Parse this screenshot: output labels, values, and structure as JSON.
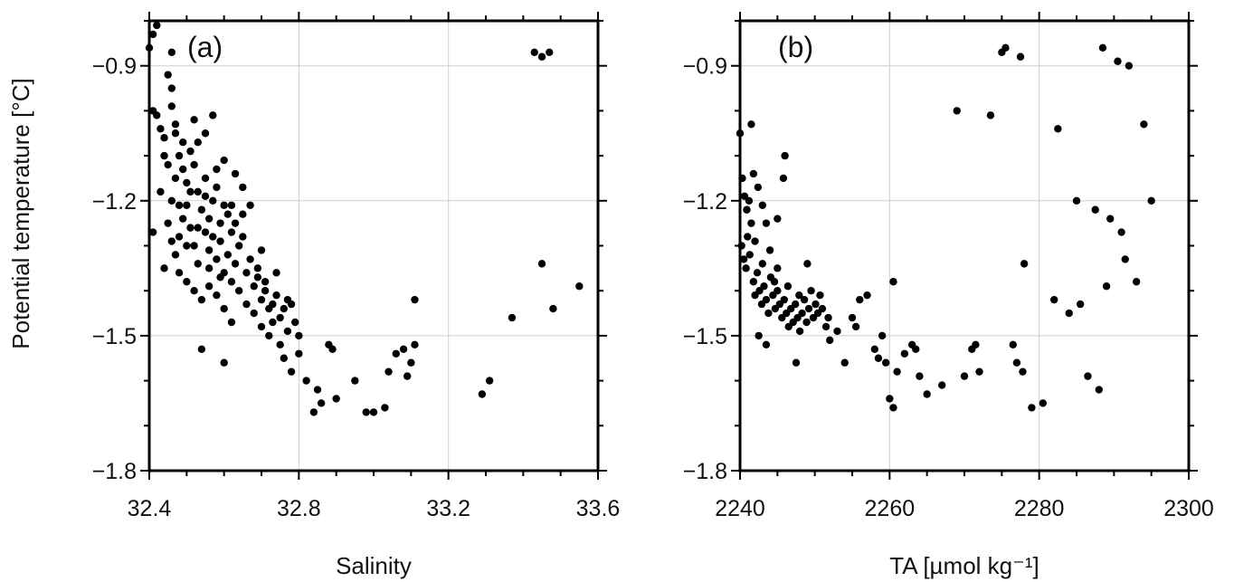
{
  "figure": {
    "ylabel": "Potential temperature [°C]"
  },
  "chart_data": [
    {
      "type": "scatter",
      "panel_label": "(a)",
      "title": "",
      "xlabel": "Salinity",
      "ylabel": "Potential temperature [°C]",
      "xlim": [
        32.4,
        33.6
      ],
      "ylim": [
        -1.8,
        -0.8
      ],
      "xticks": [
        "32.4",
        "32.8",
        "33.2",
        "33.6"
      ],
      "yticks": [
        "−1.8",
        "−1.5",
        "−1.2",
        "−0.9"
      ],
      "grid": true,
      "marker_color": "#000000",
      "series": [
        {
          "points": [
            [
              32.4,
              -0.86
            ],
            [
              32.41,
              -0.83
            ],
            [
              32.42,
              -0.81
            ],
            [
              32.43,
              -0.79
            ],
            [
              32.41,
              -1.0
            ],
            [
              32.42,
              -1.01
            ],
            [
              32.43,
              -1.04
            ],
            [
              32.44,
              -1.06
            ],
            [
              32.45,
              -0.92
            ],
            [
              32.46,
              -0.95
            ],
            [
              32.46,
              -0.99
            ],
            [
              32.47,
              -1.03
            ],
            [
              32.44,
              -1.1
            ],
            [
              32.45,
              -1.12
            ],
            [
              32.47,
              -1.15
            ],
            [
              32.43,
              -1.18
            ],
            [
              32.46,
              -1.2
            ],
            [
              32.48,
              -1.1
            ],
            [
              32.49,
              -1.13
            ],
            [
              32.5,
              -1.16
            ],
            [
              32.51,
              -1.09
            ],
            [
              32.52,
              -1.12
            ],
            [
              32.53,
              -1.18
            ],
            [
              32.45,
              -1.25
            ],
            [
              32.46,
              -1.29
            ],
            [
              32.47,
              -1.32
            ],
            [
              32.48,
              -1.28
            ],
            [
              32.49,
              -1.24
            ],
            [
              32.5,
              -1.21
            ],
            [
              32.51,
              -1.26
            ],
            [
              32.52,
              -1.3
            ],
            [
              32.53,
              -1.34
            ],
            [
              32.54,
              -1.22
            ],
            [
              32.55,
              -1.19
            ],
            [
              32.55,
              -1.27
            ],
            [
              32.56,
              -1.24
            ],
            [
              32.56,
              -1.31
            ],
            [
              32.57,
              -1.2
            ],
            [
              32.57,
              -1.28
            ],
            [
              32.58,
              -1.33
            ],
            [
              32.58,
              -1.17
            ],
            [
              32.59,
              -1.25
            ],
            [
              32.59,
              -1.29
            ],
            [
              32.6,
              -1.21
            ],
            [
              32.6,
              -1.36
            ],
            [
              32.61,
              -1.23
            ],
            [
              32.61,
              -1.32
            ],
            [
              32.62,
              -1.27
            ],
            [
              32.62,
              -1.38
            ],
            [
              32.63,
              -1.25
            ],
            [
              32.63,
              -1.34
            ],
            [
              32.64,
              -1.3
            ],
            [
              32.64,
              -1.4
            ],
            [
              32.65,
              -1.28
            ],
            [
              32.66,
              -1.36
            ],
            [
              32.66,
              -1.43
            ],
            [
              32.67,
              -1.33
            ],
            [
              32.68,
              -1.39
            ],
            [
              32.68,
              -1.45
            ],
            [
              32.69,
              -1.37
            ],
            [
              32.7,
              -1.42
            ],
            [
              32.7,
              -1.48
            ],
            [
              32.71,
              -1.4
            ],
            [
              32.72,
              -1.44
            ],
            [
              32.72,
              -1.5
            ],
            [
              32.73,
              -1.43
            ],
            [
              32.73,
              -1.47
            ],
            [
              32.74,
              -1.41
            ],
            [
              32.75,
              -1.46
            ],
            [
              32.75,
              -1.52
            ],
            [
              32.76,
              -1.44
            ],
            [
              32.77,
              -1.49
            ],
            [
              32.78,
              -1.43
            ],
            [
              32.79,
              -1.47
            ],
            [
              32.8,
              -1.5
            ],
            [
              32.48,
              -1.36
            ],
            [
              32.5,
              -1.38
            ],
            [
              32.52,
              -1.4
            ],
            [
              32.54,
              -1.42
            ],
            [
              32.56,
              -1.39
            ],
            [
              32.58,
              -1.41
            ],
            [
              32.6,
              -1.44
            ],
            [
              32.62,
              -1.47
            ],
            [
              32.44,
              -1.35
            ],
            [
              32.47,
              -1.05
            ],
            [
              32.49,
              -1.07
            ],
            [
              32.52,
              -1.02
            ],
            [
              32.55,
              -1.05
            ],
            [
              32.57,
              -1.01
            ],
            [
              32.6,
              -1.11
            ],
            [
              32.63,
              -1.14
            ],
            [
              32.65,
              -1.17
            ],
            [
              32.67,
              -1.21
            ],
            [
              32.7,
              -1.31
            ],
            [
              32.46,
              -0.87
            ],
            [
              32.41,
              -1.27
            ],
            [
              32.54,
              -1.53
            ],
            [
              32.6,
              -1.56
            ],
            [
              32.76,
              -1.55
            ],
            [
              32.78,
              -1.58
            ],
            [
              32.8,
              -1.54
            ],
            [
              32.82,
              -1.6
            ],
            [
              32.84,
              -1.67
            ],
            [
              32.85,
              -1.62
            ],
            [
              32.86,
              -1.65
            ],
            [
              32.88,
              -1.52
            ],
            [
              32.89,
              -1.53
            ],
            [
              32.9,
              -1.64
            ],
            [
              32.95,
              -1.6
            ],
            [
              32.98,
              -1.67
            ],
            [
              33.0,
              -1.67
            ],
            [
              33.03,
              -1.66
            ],
            [
              33.04,
              -1.58
            ],
            [
              33.06,
              -1.54
            ],
            [
              33.08,
              -1.53
            ],
            [
              33.09,
              -1.59
            ],
            [
              33.1,
              -1.56
            ],
            [
              33.11,
              -1.52
            ],
            [
              33.11,
              -1.42
            ],
            [
              33.29,
              -1.63
            ],
            [
              33.31,
              -1.6
            ],
            [
              33.37,
              -1.46
            ],
            [
              33.43,
              -0.87
            ],
            [
              33.45,
              -0.88
            ],
            [
              33.47,
              -0.87
            ],
            [
              33.45,
              -1.34
            ],
            [
              33.48,
              -1.44
            ],
            [
              33.55,
              -1.39
            ],
            [
              32.5,
              -1.3
            ],
            [
              32.53,
              -1.26
            ],
            [
              32.56,
              -1.35
            ],
            [
              32.59,
              -1.37
            ],
            [
              32.62,
              -1.21
            ],
            [
              32.65,
              -1.23
            ],
            [
              32.69,
              -1.35
            ],
            [
              32.71,
              -1.38
            ],
            [
              32.74,
              -1.36
            ],
            [
              32.77,
              -1.42
            ],
            [
              32.55,
              -1.15
            ],
            [
              32.58,
              -1.13
            ],
            [
              32.53,
              -1.07
            ],
            [
              32.48,
              -1.21
            ],
            [
              32.51,
              -1.18
            ]
          ]
        }
      ]
    },
    {
      "type": "scatter",
      "panel_label": "(b)",
      "title": "",
      "xlabel": "TA [µmol kg⁻¹]",
      "ylabel": "",
      "xlim": [
        2240,
        2300
      ],
      "ylim": [
        -1.8,
        -0.8
      ],
      "xticks": [
        "2240",
        "2260",
        "2280",
        "2300"
      ],
      "yticks": [
        "−1.8",
        "−1.5",
        "−1.2",
        "−0.9"
      ],
      "grid": true,
      "marker_color": "#000000",
      "series": [
        {
          "points": [
            [
              2240.0,
              -1.05
            ],
            [
              2240.3,
              -1.15
            ],
            [
              2240.6,
              -1.19
            ],
            [
              2240.9,
              -1.22
            ],
            [
              2241.2,
              -1.2
            ],
            [
              2241.5,
              -1.25
            ],
            [
              2240.2,
              -1.3
            ],
            [
              2240.5,
              -1.33
            ],
            [
              2240.8,
              -1.35
            ],
            [
              2241.0,
              -1.28
            ],
            [
              2241.3,
              -1.32
            ],
            [
              2241.8,
              -1.38
            ],
            [
              2242.0,
              -1.41
            ],
            [
              2242.3,
              -1.36
            ],
            [
              2242.6,
              -1.4
            ],
            [
              2242.9,
              -1.43
            ],
            [
              2243.2,
              -1.39
            ],
            [
              2243.5,
              -1.42
            ],
            [
              2243.8,
              -1.45
            ],
            [
              2244.1,
              -1.37
            ],
            [
              2244.4,
              -1.41
            ],
            [
              2244.7,
              -1.44
            ],
            [
              2245.0,
              -1.4
            ],
            [
              2245.3,
              -1.43
            ],
            [
              2245.6,
              -1.46
            ],
            [
              2245.9,
              -1.42
            ],
            [
              2246.2,
              -1.45
            ],
            [
              2246.5,
              -1.48
            ],
            [
              2246.8,
              -1.44
            ],
            [
              2247.1,
              -1.47
            ],
            [
              2247.4,
              -1.43
            ],
            [
              2247.7,
              -1.46
            ],
            [
              2248.0,
              -1.49
            ],
            [
              2248.3,
              -1.45
            ],
            [
              2248.6,
              -1.42
            ],
            [
              2248.9,
              -1.47
            ],
            [
              2249.2,
              -1.44
            ],
            [
              2249.5,
              -1.4
            ],
            [
              2249.8,
              -1.46
            ],
            [
              2250.1,
              -1.43
            ],
            [
              2250.4,
              -1.45
            ],
            [
              2250.7,
              -1.41
            ],
            [
              2251.0,
              -1.44
            ],
            [
              2242.0,
              -1.29
            ],
            [
              2243.0,
              -1.34
            ],
            [
              2244.0,
              -1.31
            ],
            [
              2245.0,
              -1.35
            ],
            [
              2243.5,
              -1.25
            ],
            [
              2241.5,
              -1.03
            ],
            [
              2245.8,
              -1.15
            ],
            [
              2246.0,
              -1.1
            ],
            [
              2243.0,
              -1.21
            ],
            [
              2245.0,
              -1.24
            ],
            [
              2242.5,
              -1.5
            ],
            [
              2243.5,
              -1.52
            ],
            [
              2247.5,
              -1.56
            ],
            [
              2249.0,
              -1.34
            ],
            [
              2251.5,
              -1.48
            ],
            [
              2252.0,
              -1.51
            ],
            [
              2253.0,
              -1.49
            ],
            [
              2254.0,
              -1.56
            ],
            [
              2255.0,
              -1.46
            ],
            [
              2255.5,
              -1.48
            ],
            [
              2256.0,
              -1.42
            ],
            [
              2257.0,
              -1.41
            ],
            [
              2258.0,
              -1.53
            ],
            [
              2258.5,
              -1.55
            ],
            [
              2259.0,
              -1.5
            ],
            [
              2259.5,
              -1.56
            ],
            [
              2260.0,
              -1.64
            ],
            [
              2260.5,
              -1.66
            ],
            [
              2261.0,
              -1.58
            ],
            [
              2262.0,
              -1.54
            ],
            [
              2263.0,
              -1.52
            ],
            [
              2264.0,
              -1.59
            ],
            [
              2265.0,
              -1.63
            ],
            [
              2267.0,
              -1.61
            ],
            [
              2269.0,
              -1.0
            ],
            [
              2270.0,
              -1.59
            ],
            [
              2271.0,
              -1.53
            ],
            [
              2272.0,
              -1.58
            ],
            [
              2273.5,
              -1.01
            ],
            [
              2275.0,
              -0.87
            ],
            [
              2275.5,
              -0.86
            ],
            [
              2276.5,
              -1.52
            ],
            [
              2277.0,
              -1.56
            ],
            [
              2277.5,
              -0.88
            ],
            [
              2277.8,
              -1.58
            ],
            [
              2278.0,
              -1.34
            ],
            [
              2279.0,
              -1.66
            ],
            [
              2280.5,
              -1.65
            ],
            [
              2282.0,
              -1.42
            ],
            [
              2282.5,
              -1.04
            ],
            [
              2284.0,
              -1.45
            ],
            [
              2285.0,
              -1.2
            ],
            [
              2285.5,
              -1.43
            ],
            [
              2286.5,
              -1.59
            ],
            [
              2287.5,
              -1.22
            ],
            [
              2288.0,
              -1.62
            ],
            [
              2288.5,
              -0.86
            ],
            [
              2289.0,
              -1.39
            ],
            [
              2289.5,
              -1.24
            ],
            [
              2290.5,
              -0.89
            ],
            [
              2291.0,
              -1.27
            ],
            [
              2291.5,
              -1.33
            ],
            [
              2292.0,
              -0.9
            ],
            [
              2293.0,
              -1.38
            ],
            [
              2294.0,
              -1.03
            ],
            [
              2295.0,
              -1.2
            ],
            [
              2260.5,
              -1.38
            ],
            [
              2263.5,
              -1.53
            ],
            [
              2271.5,
              -1.52
            ],
            [
              2241.8,
              -1.14
            ],
            [
              2242.4,
              -1.17
            ],
            [
              2244.6,
              -1.38
            ],
            [
              2246.4,
              -1.39
            ],
            [
              2247.9,
              -1.41
            ],
            [
              2251.8,
              -1.46
            ]
          ]
        }
      ]
    }
  ]
}
